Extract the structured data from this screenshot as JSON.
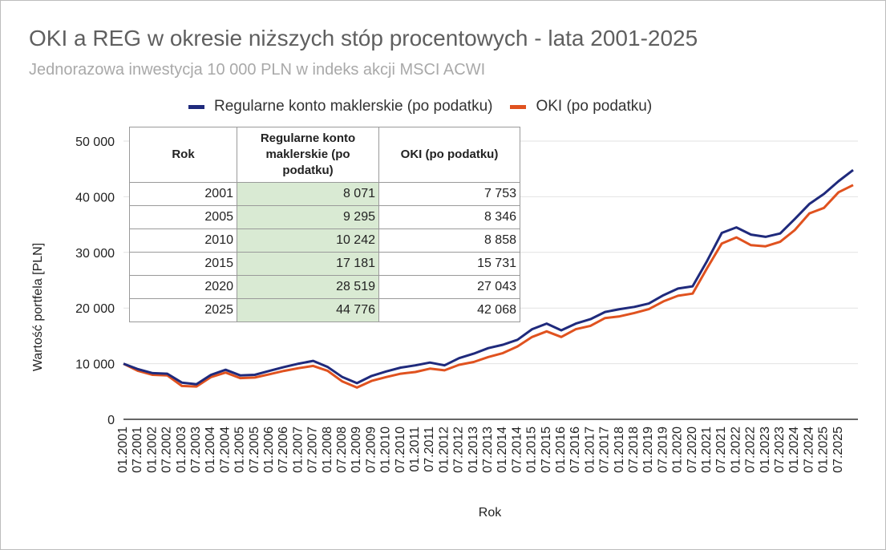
{
  "title": "OKI a REG w okresie niższych stóp procentowych - lata 2001-2025",
  "subtitle": "Jednorazowa inwestycja 10 000 PLN w indeks akcji MSCI ACWI",
  "colors": {
    "reg": "#1f2a7c",
    "oki": "#e0521f",
    "table_highlight": "#d9ead3"
  },
  "table": {
    "headers": [
      "Rok",
      "Regularne konto maklerskie (po podatku)",
      "OKI (po podatku)"
    ],
    "rows": [
      [
        "2001",
        "8 071",
        "7 753"
      ],
      [
        "2005",
        "9 295",
        "8 346"
      ],
      [
        "2010",
        "10 242",
        "8 858"
      ],
      [
        "2015",
        "17 181",
        "15 731"
      ],
      [
        "2020",
        "28 519",
        "27 043"
      ],
      [
        "2025",
        "44 776",
        "42 068"
      ]
    ]
  },
  "chart_data": {
    "type": "line",
    "title": "OKI a REG w okresie niższych stóp procentowych - lata 2001-2025",
    "subtitle": "Jednorazowa inwestycja 10 000 PLN w indeks akcji MSCI ACWI",
    "xlabel": "Rok",
    "ylabel": "Wartość portfela [PLN]",
    "ylim": [
      0,
      50000
    ],
    "yticks": [
      0,
      10000,
      20000,
      30000,
      40000,
      50000
    ],
    "ytick_labels": [
      "0",
      "10 000",
      "20 000",
      "30 000",
      "40 000",
      "50 000"
    ],
    "xtick_labels": [
      "01.2001",
      "07.2001",
      "01.2002",
      "07.2002",
      "01.2003",
      "07.2003",
      "01.2004",
      "07.2004",
      "01.2005",
      "07.2005",
      "01.2006",
      "07.2006",
      "01.2007",
      "07.2007",
      "01.2008",
      "07.2008",
      "01.2009",
      "07.2009",
      "01.2010",
      "07.2010",
      "01.2011",
      "07.2011",
      "01.2012",
      "07.2012",
      "01.2013",
      "07.2013",
      "01.2014",
      "07.2014",
      "01.2015",
      "07.2015",
      "01.2016",
      "07.2016",
      "01.2017",
      "07.2017",
      "01.2018",
      "07.2018",
      "01.2019",
      "07.2019",
      "01.2020",
      "07.2020",
      "01.2021",
      "07.2021",
      "01.2022",
      "07.2022",
      "01.2023",
      "07.2023",
      "01.2024",
      "07.2024",
      "01.2025",
      "07.2025"
    ],
    "grid": true,
    "legend_position": "top",
    "x": [
      "01.2001",
      "07.2001",
      "01.2002",
      "07.2002",
      "01.2003",
      "07.2003",
      "01.2004",
      "07.2004",
      "01.2005",
      "07.2005",
      "01.2006",
      "07.2006",
      "01.2007",
      "07.2007",
      "01.2008",
      "07.2008",
      "01.2009",
      "07.2009",
      "01.2010",
      "07.2010",
      "01.2011",
      "07.2011",
      "01.2012",
      "07.2012",
      "01.2013",
      "07.2013",
      "01.2014",
      "07.2014",
      "01.2015",
      "07.2015",
      "01.2016",
      "07.2016",
      "01.2017",
      "07.2017",
      "01.2018",
      "07.2018",
      "01.2019",
      "07.2019",
      "01.2020",
      "07.2020",
      "01.2021",
      "07.2021",
      "01.2022",
      "07.2022",
      "01.2023",
      "07.2023",
      "01.2024",
      "07.2024",
      "01.2025",
      "07.2025",
      "12.2025"
    ],
    "series": [
      {
        "name": "Regularne konto maklerskie (po podatku)",
        "color": "#1f2a7c",
        "values": [
          10000,
          9000,
          8300,
          8200,
          6600,
          6300,
          8000,
          8900,
          7900,
          8000,
          8700,
          9400,
          10000,
          10500,
          9400,
          7600,
          6500,
          7800,
          8600,
          9300,
          9700,
          10200,
          9700,
          11000,
          11800,
          12800,
          13400,
          14300,
          16200,
          17200,
          16000,
          17200,
          18000,
          19300,
          19800,
          20200,
          20800,
          22300,
          23500,
          23900,
          28500,
          33500,
          34500,
          33200,
          32800,
          33400,
          36000,
          38700,
          40500,
          42800,
          44800
        ]
      },
      {
        "name": "OKI (po podatku)",
        "color": "#e0521f",
        "values": [
          10000,
          8700,
          8000,
          7900,
          6000,
          5900,
          7600,
          8400,
          7400,
          7500,
          8100,
          8700,
          9200,
          9600,
          8700,
          6800,
          5700,
          6900,
          7600,
          8200,
          8500,
          9100,
          8800,
          9800,
          10300,
          11200,
          11900,
          13100,
          14800,
          15800,
          14800,
          16200,
          16800,
          18200,
          18500,
          19100,
          19800,
          21200,
          22200,
          22600,
          27200,
          31600,
          32700,
          31300,
          31100,
          31900,
          34000,
          37000,
          38000,
          40800,
          42100
        ]
      }
    ]
  }
}
